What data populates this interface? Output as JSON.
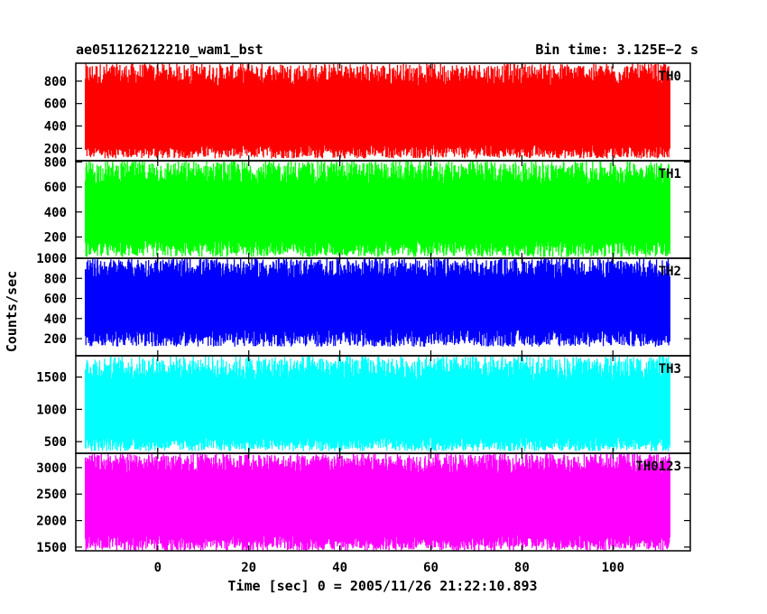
{
  "header": {
    "left_title": "ae051126212210_wam1_bst",
    "right_title": "Bin time: 3.125E−2 s"
  },
  "chart_data": {
    "type": "line",
    "ylabel": "Counts/sec",
    "xlabel": "Time [sec] 0 = 2005/11/26 21:22:10.893",
    "xlim": [
      -18,
      117
    ],
    "x_range": [
      -15.9,
      112.5
    ],
    "bin_time": 0.03125,
    "x_ticks": [
      0,
      20,
      40,
      60,
      80,
      100
    ],
    "grid": false,
    "series": [
      {
        "name": "TH0",
        "color": "#ff0000",
        "ylim": [
          90,
          960
        ],
        "yticks": [
          200,
          400,
          600,
          800
        ],
        "low": [
          110,
          230
        ],
        "high": [
          760,
          960
        ],
        "mean": 450
      },
      {
        "name": "TH1",
        "color": "#00ff00",
        "ylim": [
          30,
          810
        ],
        "yticks": [
          200,
          400,
          600,
          800
        ],
        "low": [
          40,
          170
        ],
        "high": [
          620,
          810
        ],
        "mean": 400
      },
      {
        "name": "TH2",
        "color": "#0000ff",
        "ylim": [
          30,
          1000
        ],
        "yticks": [
          200,
          400,
          600,
          800,
          1000
        ],
        "low": [
          120,
          290
        ],
        "high": [
          800,
          1000
        ],
        "mean": 540
      },
      {
        "name": "TH3",
        "color": "#00ffff",
        "ylim": [
          320,
          1830
        ],
        "yticks": [
          500,
          1000,
          1500
        ],
        "low": [
          350,
          560
        ],
        "high": [
          1450,
          1830
        ],
        "mean": 1060
      },
      {
        "name": "TH0123",
        "color": "#ff00ff",
        "ylim": [
          1430,
          3270
        ],
        "yticks": [
          1500,
          2000,
          2500,
          3000
        ],
        "low": [
          1430,
          1720
        ],
        "high": [
          2900,
          3270
        ],
        "mean": 2430
      }
    ]
  }
}
